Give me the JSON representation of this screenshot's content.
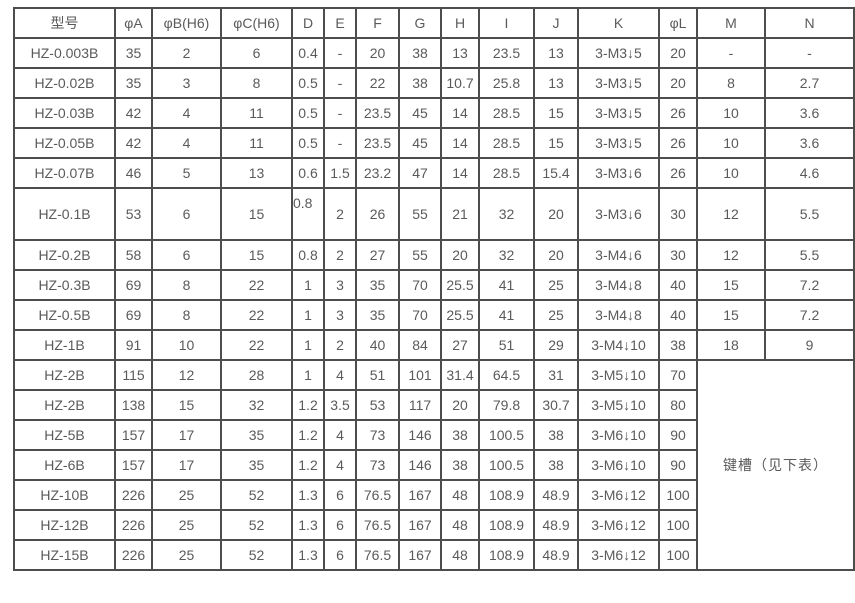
{
  "headers": [
    "型号",
    "φA",
    "φB(H6)",
    "φC(H6)",
    "D",
    "E",
    "F",
    "G",
    "H",
    "I",
    "J",
    "K",
    "φL",
    "M",
    "N"
  ],
  "rows": [
    [
      "HZ-0.003B",
      "35",
      "2",
      "6",
      "0.4",
      "-",
      "20",
      "38",
      "13",
      "23.5",
      "13",
      "3-M3↓5",
      "20",
      "-",
      "-"
    ],
    [
      "HZ-0.02B",
      "35",
      "3",
      "8",
      "0.5",
      "-",
      "22",
      "38",
      "10.7",
      "25.8",
      "13",
      "3-M3↓5",
      "20",
      "8",
      "2.7"
    ],
    [
      "HZ-0.03B",
      "42",
      "4",
      "11",
      "0.5",
      "-",
      "23.5",
      "45",
      "14",
      "28.5",
      "15",
      "3-M3↓5",
      "26",
      "10",
      "3.6"
    ],
    [
      "HZ-0.05B",
      "42",
      "4",
      "11",
      "0.5",
      "-",
      "23.5",
      "45",
      "14",
      "28.5",
      "15",
      "3-M3↓5",
      "26",
      "10",
      "3.6"
    ],
    [
      "HZ-0.07B",
      "46",
      "5",
      "13",
      "0.6",
      "1.5",
      "23.2",
      "47",
      "14",
      "28.5",
      "15.4",
      "3-M3↓6",
      "26",
      "10",
      "4.6"
    ],
    [
      "HZ-0.1B",
      "53",
      "6",
      "15",
      "0.8",
      "2",
      "26",
      "55",
      "21",
      "32",
      "20",
      "3-M3↓6",
      "30",
      "12",
      "5.5"
    ],
    [
      "HZ-0.2B",
      "58",
      "6",
      "15",
      "0.8",
      "2",
      "27",
      "55",
      "20",
      "32",
      "20",
      "3-M4↓6",
      "30",
      "12",
      "5.5"
    ],
    [
      "HZ-0.3B",
      "69",
      "8",
      "22",
      "1",
      "3",
      "35",
      "70",
      "25.5",
      "41",
      "25",
      "3-M4↓8",
      "40",
      "15",
      "7.2"
    ],
    [
      "HZ-0.5B",
      "69",
      "8",
      "22",
      "1",
      "3",
      "35",
      "70",
      "25.5",
      "41",
      "25",
      "3-M4↓8",
      "40",
      "15",
      "7.2"
    ],
    [
      "HZ-1B",
      "91",
      "10",
      "22",
      "1",
      "2",
      "40",
      "84",
      "27",
      "51",
      "29",
      "3-M4↓10",
      "38",
      "18",
      "9"
    ],
    [
      "HZ-2B",
      "115",
      "12",
      "28",
      "1",
      "4",
      "51",
      "101",
      "31.4",
      "64.5",
      "31",
      "3-M5↓10",
      "70"
    ],
    [
      "HZ-2B",
      "138",
      "15",
      "32",
      "1.2",
      "3.5",
      "53",
      "117",
      "20",
      "79.8",
      "30.7",
      "3-M5↓10",
      "80"
    ],
    [
      "HZ-5B",
      "157",
      "17",
      "35",
      "1.2",
      "4",
      "73",
      "146",
      "38",
      "100.5",
      "38",
      "3-M6↓10",
      "90"
    ],
    [
      "HZ-6B",
      "157",
      "17",
      "35",
      "1.2",
      "4",
      "73",
      "146",
      "38",
      "100.5",
      "38",
      "3-M6↓10",
      "90"
    ],
    [
      "HZ-10B",
      "226",
      "25",
      "52",
      "1.3",
      "6",
      "76.5",
      "167",
      "48",
      "108.9",
      "48.9",
      "3-M6↓12",
      "100"
    ],
    [
      "HZ-12B",
      "226",
      "25",
      "52",
      "1.3",
      "6",
      "76.5",
      "167",
      "48",
      "108.9",
      "48.9",
      "3-M6↓12",
      "100"
    ],
    [
      "HZ-15B",
      "226",
      "25",
      "52",
      "1.3",
      "6",
      "76.5",
      "167",
      "48",
      "108.9",
      "48.9",
      "3-M6↓12",
      "100"
    ]
  ],
  "merged_mn_note": "键槽（见下表）"
}
